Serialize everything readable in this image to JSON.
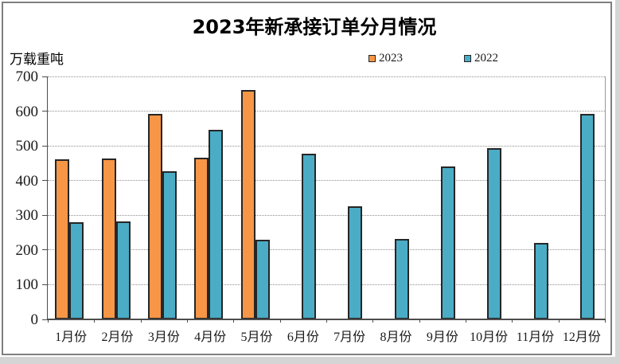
{
  "chart_data": {
    "type": "bar",
    "title": "2023年新承接订单分月情况",
    "ylabel": "万载重吨",
    "xlabel": "",
    "categories": [
      "1月份",
      "2月份",
      "3月份",
      "4月份",
      "5月份",
      "6月份",
      "7月份",
      "8月份",
      "9月份",
      "10月份",
      "11月份",
      "12月份"
    ],
    "series": [
      {
        "name": "2023",
        "color": "#F79646",
        "values": [
          462,
          463,
          593,
          467,
          660,
          null,
          null,
          null,
          null,
          null,
          null,
          null
        ]
      },
      {
        "name": "2022",
        "color": "#4BACC6",
        "values": [
          281,
          282,
          428,
          546,
          230,
          477,
          325,
          232,
          440,
          494,
          220,
          592
        ]
      }
    ],
    "ylim": [
      0,
      700
    ],
    "ytick_step": 100,
    "grid": "horizontal-dotted",
    "legend_position": "top",
    "bar_border_color": "#262626"
  }
}
